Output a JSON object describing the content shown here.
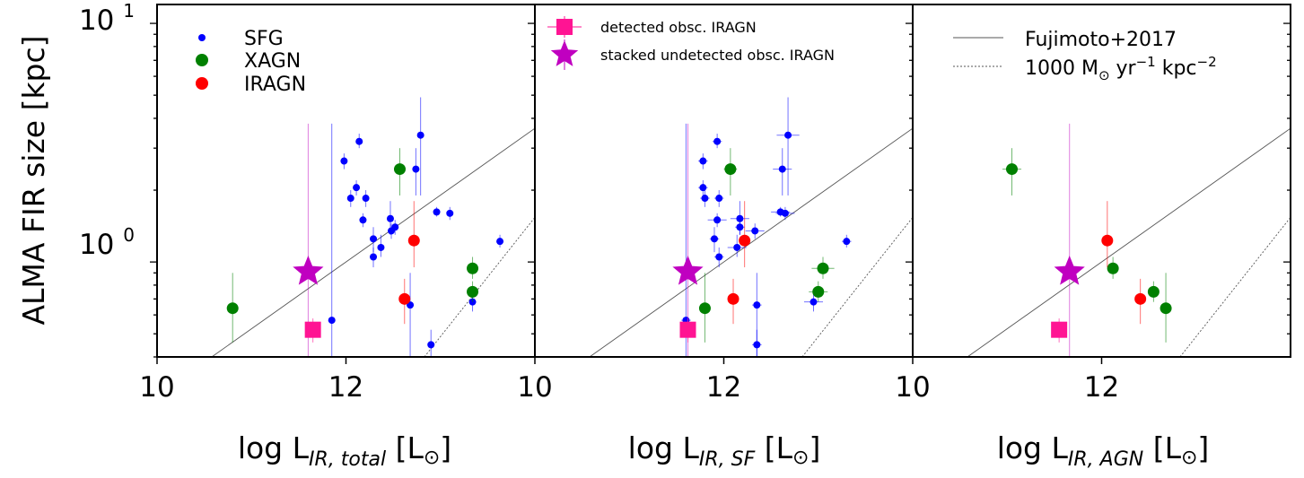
{
  "chart_data": {
    "type": "scatter",
    "ylabel": "ALMA FIR size [kpc]",
    "yscale": "log",
    "ylim": [
      0.4,
      12
    ],
    "ytick_labels": [
      {
        "value": 10,
        "base": "10",
        "exp": "1"
      },
      {
        "value": 1,
        "base": "10",
        "exp": "0"
      }
    ],
    "panels": [
      {
        "id": "total",
        "xlabel": {
          "pre": "log L",
          "sub": "IR, total",
          "post": " [L",
          "sun": "⊙",
          "close": "]"
        },
        "xlim": [
          10,
          14.0
        ],
        "xticks": [
          10,
          12
        ],
        "xtick_labels": [
          "10",
          "12"
        ],
        "legend": {
          "position": "top-left",
          "entries": [
            {
              "label": "SFG",
              "marker": "circle-small",
              "color": "#0000ff"
            },
            {
              "label": "XAGN",
              "marker": "circle",
              "color": "#008000"
            },
            {
              "label": "IRAGN",
              "marker": "circle",
              "color": "#ff0000"
            }
          ]
        },
        "series": {
          "SFG": [
            {
              "x": 12.79,
              "y": 3.4,
              "xerr": 0,
              "ylo": 1.9,
              "yhi": 4.9
            },
            {
              "x": 12.14,
              "y": 3.2,
              "xerr": 0,
              "ylo": 3.0,
              "yhi": 3.45
            },
            {
              "x": 12.74,
              "y": 2.45,
              "xerr": 0,
              "ylo": 1.9,
              "yhi": 3.0
            },
            {
              "x": 11.98,
              "y": 2.65,
              "xerr": 0,
              "ylo": 2.45,
              "yhi": 2.85
            },
            {
              "x": 12.11,
              "y": 2.05,
              "xerr": 0,
              "ylo": 1.9,
              "yhi": 2.2
            },
            {
              "x": 12.05,
              "y": 1.85,
              "xerr": 0,
              "ylo": 1.7,
              "yhi": 2.0
            },
            {
              "x": 12.21,
              "y": 1.85,
              "xerr": 0,
              "ylo": 1.7,
              "yhi": 2.0
            },
            {
              "x": 12.96,
              "y": 1.62,
              "xerr": 0,
              "ylo": 1.55,
              "yhi": 1.7
            },
            {
              "x": 13.1,
              "y": 1.6,
              "xerr": 0,
              "ylo": 1.5,
              "yhi": 1.7
            },
            {
              "x": 12.47,
              "y": 1.52,
              "xerr": 0,
              "ylo": 1.3,
              "yhi": 1.8
            },
            {
              "x": 12.18,
              "y": 1.5,
              "xerr": 0,
              "ylo": 1.4,
              "yhi": 1.6
            },
            {
              "x": 12.52,
              "y": 1.4,
              "xerr": 0,
              "ylo": 1.3,
              "yhi": 1.5
            },
            {
              "x": 12.48,
              "y": 1.35,
              "xerr": 0,
              "ylo": 1.25,
              "yhi": 1.45
            },
            {
              "x": 12.29,
              "y": 1.25,
              "xerr": 0,
              "ylo": 1.1,
              "yhi": 1.4
            },
            {
              "x": 12.37,
              "y": 1.15,
              "xerr": 0,
              "ylo": 1.05,
              "yhi": 1.3
            },
            {
              "x": 12.29,
              "y": 1.05,
              "xerr": 0,
              "ylo": 0.95,
              "yhi": 1.15
            },
            {
              "x": 13.63,
              "y": 1.22,
              "xerr": 0,
              "ylo": 1.15,
              "yhi": 1.3
            },
            {
              "x": 13.34,
              "y": 0.68,
              "xerr": 0,
              "ylo": 0.62,
              "yhi": 0.74
            },
            {
              "x": 12.68,
              "y": 0.66,
              "xerr": 0,
              "ylo": 0.4,
              "yhi": 0.9
            },
            {
              "x": 11.85,
              "y": 0.57,
              "xerr": 0,
              "ylo": 0.4,
              "yhi": 3.8
            },
            {
              "x": 12.9,
              "y": 0.45,
              "xerr": 0,
              "ylo": 0.4,
              "yhi": 0.52
            }
          ],
          "XAGN": [
            {
              "x": 12.57,
              "y": 2.45,
              "xerr": 0,
              "ylo": 1.9,
              "yhi": 3.0
            },
            {
              "x": 13.34,
              "y": 0.94,
              "xerr": 0,
              "ylo": 0.85,
              "yhi": 1.05
            },
            {
              "x": 13.34,
              "y": 0.75,
              "xerr": 0,
              "ylo": 0.68,
              "yhi": 0.83
            },
            {
              "x": 10.8,
              "y": 0.64,
              "xerr": 0,
              "ylo": 0.46,
              "yhi": 0.9
            }
          ],
          "IRAGN": [
            {
              "x": 12.72,
              "y": 1.23,
              "xerr": 0,
              "ylo": 0.95,
              "yhi": 1.8
            },
            {
              "x": 12.62,
              "y": 0.7,
              "xerr": 0,
              "ylo": 0.55,
              "yhi": 0.85
            }
          ]
        },
        "detected_square": {
          "x": 11.65,
          "y": 0.52,
          "ylo": 0.46,
          "yhi": 0.58
        },
        "stacked_star": {
          "x": 11.6,
          "y": 0.91,
          "ylo": 0.4,
          "yhi": 3.8
        }
      },
      {
        "id": "sf",
        "xlabel": {
          "pre": "log L",
          "sub": "IR, SF",
          "post": " [L",
          "sun": "⊙",
          "close": "]"
        },
        "xlim": [
          10,
          14.0
        ],
        "xticks": [
          10,
          12
        ],
        "xtick_labels": [
          "10",
          "12"
        ],
        "legend": {
          "position": "top-left",
          "entries": [
            {
              "label": "detected obsc. IRAGN",
              "marker": "square",
              "color": "#ff1493"
            },
            {
              "label": "stacked undetected obsc. IRAGN",
              "marker": "star",
              "color": "#c000c0"
            }
          ]
        },
        "series": {
          "SFG": [
            {
              "x": 12.68,
              "y": 3.4,
              "xerr": 0.12,
              "ylo": 1.9,
              "yhi": 4.9
            },
            {
              "x": 11.93,
              "y": 3.2,
              "xerr": 0.05,
              "ylo": 3.0,
              "yhi": 3.45
            },
            {
              "x": 12.62,
              "y": 2.45,
              "xerr": 0.1,
              "ylo": 1.9,
              "yhi": 3.0
            },
            {
              "x": 11.78,
              "y": 2.65,
              "xerr": 0.05,
              "ylo": 2.45,
              "yhi": 2.85
            },
            {
              "x": 11.78,
              "y": 2.05,
              "xerr": 0.05,
              "ylo": 1.9,
              "yhi": 2.2
            },
            {
              "x": 11.8,
              "y": 1.85,
              "xerr": 0.05,
              "ylo": 1.7,
              "yhi": 2.0
            },
            {
              "x": 11.95,
              "y": 1.85,
              "xerr": 0.05,
              "ylo": 1.7,
              "yhi": 2.0
            },
            {
              "x": 12.6,
              "y": 1.62,
              "xerr": 0.1,
              "ylo": 1.55,
              "yhi": 1.7
            },
            {
              "x": 12.65,
              "y": 1.6,
              "xerr": 0.1,
              "ylo": 1.5,
              "yhi": 1.7
            },
            {
              "x": 12.17,
              "y": 1.52,
              "xerr": 0.1,
              "ylo": 1.3,
              "yhi": 1.8
            },
            {
              "x": 11.93,
              "y": 1.5,
              "xerr": 0.1,
              "ylo": 1.4,
              "yhi": 1.6
            },
            {
              "x": 12.17,
              "y": 1.4,
              "xerr": 0.05,
              "ylo": 1.3,
              "yhi": 1.5
            },
            {
              "x": 12.33,
              "y": 1.35,
              "xerr": 0.1,
              "ylo": 1.25,
              "yhi": 1.45
            },
            {
              "x": 11.9,
              "y": 1.25,
              "xerr": 0.05,
              "ylo": 1.1,
              "yhi": 1.4
            },
            {
              "x": 12.14,
              "y": 1.15,
              "xerr": 0.1,
              "ylo": 1.05,
              "yhi": 1.3
            },
            {
              "x": 11.95,
              "y": 1.05,
              "xerr": 0.05,
              "ylo": 0.95,
              "yhi": 1.15
            },
            {
              "x": 13.3,
              "y": 1.22,
              "xerr": 0.05,
              "ylo": 1.15,
              "yhi": 1.3
            },
            {
              "x": 12.95,
              "y": 0.68,
              "xerr": 0.1,
              "ylo": 0.62,
              "yhi": 0.74
            },
            {
              "x": 12.35,
              "y": 0.66,
              "xerr": 0.05,
              "ylo": 0.4,
              "yhi": 0.9
            },
            {
              "x": 11.6,
              "y": 0.57,
              "xerr": 0.05,
              "ylo": 0.4,
              "yhi": 3.8
            },
            {
              "x": 12.35,
              "y": 0.45,
              "xerr": 0.05,
              "ylo": 0.4,
              "yhi": 0.52
            }
          ],
          "XAGN": [
            {
              "x": 12.07,
              "y": 2.45,
              "xerr": 0.07,
              "ylo": 1.9,
              "yhi": 3.0
            },
            {
              "x": 13.05,
              "y": 0.94,
              "xerr": 0.12,
              "ylo": 0.85,
              "yhi": 1.05
            },
            {
              "x": 13.0,
              "y": 0.75,
              "xerr": 0.1,
              "ylo": 0.68,
              "yhi": 0.83
            },
            {
              "x": 11.8,
              "y": 0.64,
              "xerr": 0.05,
              "ylo": 0.46,
              "yhi": 0.9
            }
          ],
          "IRAGN": [
            {
              "x": 12.22,
              "y": 1.23,
              "xerr": 0.05,
              "ylo": 0.95,
              "yhi": 1.8
            },
            {
              "x": 12.1,
              "y": 0.7,
              "xerr": 0.05,
              "ylo": 0.55,
              "yhi": 0.85
            }
          ]
        },
        "detected_square": {
          "x": 11.62,
          "y": 0.52,
          "ylo": 0.46,
          "yhi": 0.58
        },
        "stacked_star": {
          "x": 11.62,
          "y": 0.91,
          "ylo": 0.4,
          "yhi": 3.8
        }
      },
      {
        "id": "agn",
        "xlabel": {
          "pre": "log L",
          "sub": "IR, AGN",
          "post": " [L",
          "sun": "⊙",
          "close": "]"
        },
        "xlim": [
          10,
          14.0
        ],
        "xticks": [
          10,
          12
        ],
        "xtick_labels": [
          "10",
          "12"
        ],
        "legend": {
          "position": "top-right",
          "entries": [
            {
              "label": "Fujimoto+2017",
              "marker": "line-solid",
              "color": "#555555"
            },
            {
              "label": "1000 M",
              "sun": "⊙",
              "rest": " yr",
              "exp1": "−1",
              "rest2": " kpc",
              "exp2": "−2",
              "marker": "line-dashed",
              "color": "#555555"
            }
          ]
        },
        "series": {
          "SFG": [],
          "XAGN": [
            {
              "x": 11.05,
              "y": 2.45,
              "xerr": 0.1,
              "ylo": 1.9,
              "yhi": 3.0
            },
            {
              "x": 12.12,
              "y": 0.94,
              "xerr": 0.05,
              "ylo": 0.85,
              "yhi": 1.05
            },
            {
              "x": 12.55,
              "y": 0.75,
              "xerr": 0.05,
              "ylo": 0.68,
              "yhi": 0.83
            },
            {
              "x": 12.68,
              "y": 0.64,
              "xerr": 0.05,
              "ylo": 0.46,
              "yhi": 0.9
            }
          ],
          "IRAGN": [
            {
              "x": 12.06,
              "y": 1.23,
              "xerr": 0.05,
              "ylo": 0.95,
              "yhi": 1.8
            },
            {
              "x": 12.41,
              "y": 0.7,
              "xerr": 0.05,
              "ylo": 0.55,
              "yhi": 0.85
            }
          ]
        },
        "detected_square": {
          "x": 11.55,
          "y": 0.52,
          "ylo": 0.46,
          "yhi": 0.58
        },
        "stacked_star": {
          "x": 11.66,
          "y": 0.91,
          "ylo": 0.4,
          "yhi": 3.8
        }
      }
    ],
    "relations": {
      "fujimoto_2017": {
        "slope": 0.28,
        "anchor_x": 12.0,
        "anchor_y": 1.0
      },
      "sfr_density_1000": {
        "slope": 0.5,
        "anchor_x": 12.83,
        "anchor_y": 0.4
      }
    },
    "colors": {
      "sfg": "#0000ff",
      "xagn": "#008000",
      "iragn": "#ff0000",
      "detected": "#ff1493",
      "stacked": "#c000c0",
      "relation": "#555555"
    }
  }
}
